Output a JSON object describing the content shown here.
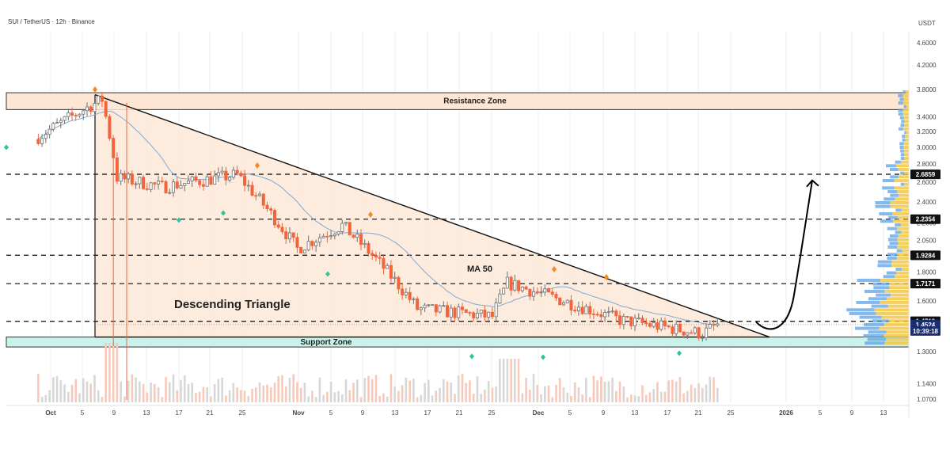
{
  "header": {
    "title": "SUI / TetherUS · 12h · Binance",
    "currency": "USDT"
  },
  "colors": {
    "up": "#6f6f6f",
    "down": "#f2643c",
    "resistance_fill": "#fde6d3",
    "support_fill": "#c9f2ea",
    "triangle_fill": "#fde9d7",
    "ma": "#7fa8d6",
    "badge": "#000000",
    "profile_yellow": "#f5c842",
    "profile_blue": "#5aa1e8"
  },
  "chart_data": {
    "type": "candlestick",
    "title": "SUI / TetherUS · 12h · Binance",
    "ylabel": "USDT",
    "ylim": [
      1.0,
      4.75
    ],
    "y_scale": "log",
    "y_ticks": [
      "4.6000",
      "4.2000",
      "3.8000",
      "3.4000",
      "3.2000",
      "3.0000",
      "2.8000",
      "2.6000",
      "2.4000",
      "2.2000",
      "2.0500",
      "1.8000",
      "1.6000",
      "1.3000",
      "1.1400",
      "1.0700"
    ],
    "x_ticks": [
      "Oct",
      "5",
      "9",
      "13",
      "17",
      "21",
      "25",
      "Nov",
      "5",
      "9",
      "13",
      "17",
      "21",
      "25",
      "Dec",
      "5",
      "9",
      "13",
      "17",
      "21",
      "25",
      "2026",
      "5",
      "9",
      "13"
    ],
    "price_badges": [
      {
        "label": "2.6859",
        "value": 2.6859,
        "style": "black"
      },
      {
        "label": "2.2354",
        "value": 2.2354,
        "style": "black"
      },
      {
        "label": "1.9284",
        "value": 1.9284,
        "style": "black"
      },
      {
        "label": "1.7171",
        "value": 1.7171,
        "style": "black"
      },
      {
        "label": "1.4719",
        "value": 1.4719,
        "style": "black"
      },
      {
        "label": "1.4524",
        "value": 1.4524,
        "style": "navy"
      },
      {
        "label": "10:39:18",
        "value": 1.415,
        "style": "navy"
      }
    ],
    "dashed_levels": [
      2.6859,
      2.2354,
      1.9284,
      1.7171,
      1.4719
    ],
    "resistance_zone": {
      "label": "Resistance Zone",
      "low": 3.5,
      "high": 3.75
    },
    "support_zone": {
      "label": "Support Zone",
      "low": 1.325,
      "high": 1.38
    },
    "pattern_label": "Descending Triangle",
    "ma_label": "MA 50",
    "ohlc_segments": [
      {
        "from": "Sep 30",
        "to": "Oct 9",
        "start": 3.1,
        "end": 3.65
      },
      {
        "from": "Oct 9",
        "to": "Oct 11",
        "start": 3.65,
        "end": 2.65
      },
      {
        "from": "Oct 11",
        "to": "Oct 17",
        "start": 2.65,
        "end": 2.55
      },
      {
        "from": "Oct 17",
        "to": "Oct 27",
        "start": 2.55,
        "end": 2.68
      },
      {
        "from": "Oct 27",
        "to": "Nov 4",
        "start": 2.68,
        "end": 1.98
      },
      {
        "from": "Nov 4",
        "to": "Nov 10",
        "start": 1.98,
        "end": 2.18
      },
      {
        "from": "Nov 10",
        "to": "Nov 20",
        "start": 2.18,
        "end": 1.55
      },
      {
        "from": "Nov 20",
        "to": "Nov 30",
        "start": 1.55,
        "end": 1.5
      },
      {
        "from": "Nov 30",
        "to": "Dec 2",
        "start": 1.5,
        "end": 1.72
      },
      {
        "from": "Dec 2",
        "to": "Dec 17",
        "start": 1.72,
        "end": 1.48
      },
      {
        "from": "Dec 17",
        "to": "Dec 28",
        "start": 1.48,
        "end": 1.4
      },
      {
        "from": "Dec 28",
        "to": "Dec 30",
        "start": 1.4,
        "end": 1.45
      }
    ],
    "projection": {
      "from_value": 1.44,
      "to_value": 2.6859,
      "direction": "up"
    }
  }
}
